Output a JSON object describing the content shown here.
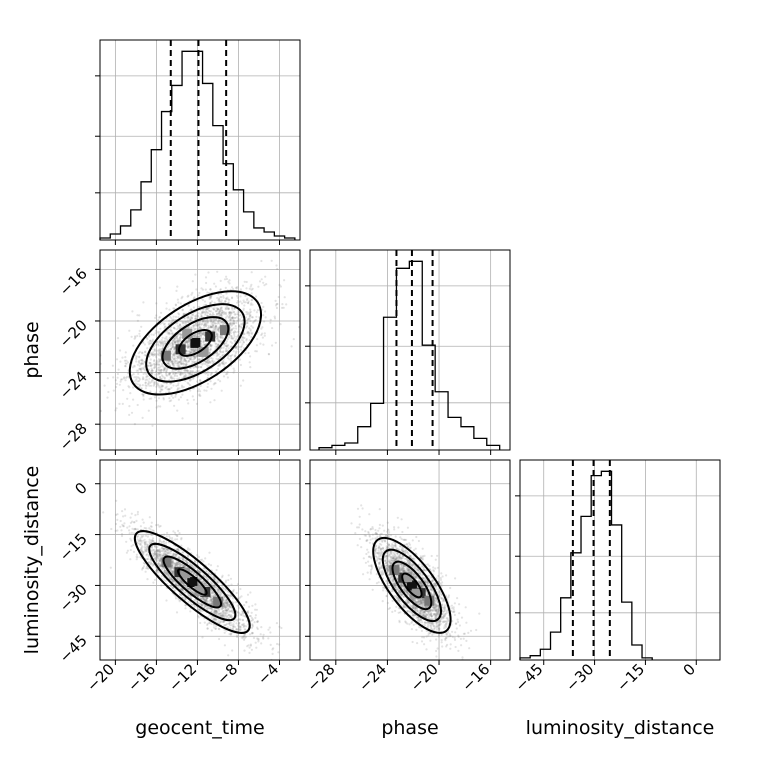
{
  "chart_data": {
    "type": "corner",
    "grid": true,
    "parameters": [
      {
        "name": "geocent_time",
        "label": "geocent_time",
        "range": [
          -21.5,
          -2.0
        ],
        "ticks": [
          -20,
          -16,
          -12,
          -8,
          -4
        ],
        "tick_labels": [
          "−20",
          "−16",
          "−12",
          "−8",
          "−4"
        ],
        "quantiles": [
          -14.6,
          -11.9,
          -9.2
        ],
        "histogram": {
          "edges": [
            -21.5,
            -20.5,
            -19.5,
            -18.5,
            -17.5,
            -16.5,
            -15.5,
            -14.5,
            -13.5,
            -12.5,
            -11.5,
            -10.5,
            -9.5,
            -8.5,
            -7.5,
            -6.5,
            -5.5,
            -4.5,
            -3.5,
            -2.5
          ],
          "counts": [
            1,
            3,
            7,
            15,
            29,
            45,
            64,
            77,
            94,
            94,
            78,
            57,
            38,
            25,
            14,
            6,
            4,
            2,
            1
          ]
        }
      },
      {
        "name": "phase",
        "label": "phase",
        "range": [
          -30.0,
          -14.5
        ],
        "ticks": [
          -28,
          -24,
          -20,
          -16
        ],
        "tick_labels": [
          "−28",
          "−24",
          "−20",
          "−16"
        ],
        "quantiles": [
          -23.3,
          -22.1,
          -20.5
        ],
        "histogram": {
          "edges": [
            -29.3,
            -28.3,
            -27.3,
            -26.3,
            -25.3,
            -24.3,
            -23.3,
            -22.3,
            -21.3,
            -20.3,
            -19.3,
            -18.3,
            -17.3,
            -16.3,
            -15.3
          ],
          "counts": [
            1,
            2,
            3,
            10,
            20,
            57,
            78,
            81,
            45,
            25,
            14,
            10,
            5,
            2
          ]
        }
      },
      {
        "name": "luminosity_distance",
        "label": "luminosity_distance",
        "range": [
          -52.0,
          7.0
        ],
        "ticks": [
          -45,
          -30,
          -15,
          0
        ],
        "tick_labels": [
          "−45",
          "−30",
          "−15",
          "0"
        ],
        "quantiles": [
          -36.4,
          -30.3,
          -25.5
        ],
        "histogram": {
          "edges": [
            -52.0,
            -49.0,
            -46.0,
            -43.0,
            -40.0,
            -37.0,
            -34.0,
            -31.0,
            -28.0,
            -25.0,
            -22.0,
            -19.0,
            -16.0,
            -13.0
          ],
          "counts": [
            1,
            2,
            5,
            13,
            29,
            50,
            67,
            86,
            88,
            63,
            27,
            7,
            1
          ]
        }
      }
    ],
    "pairs": [
      {
        "x": "geocent_time",
        "y": "phase",
        "center": [
          -12.2,
          -21.7
        ],
        "spread": [
          3.2,
          2.0
        ],
        "correlation": 0.55
      },
      {
        "x": "geocent_time",
        "y": "luminosity_distance",
        "center": [
          -12.5,
          -29.0
        ],
        "spread": [
          2.8,
          7.5
        ],
        "correlation": -0.86
      },
      {
        "x": "phase",
        "y": "luminosity_distance",
        "center": [
          -22.1,
          -30.0
        ],
        "spread": [
          1.5,
          7.0
        ],
        "correlation": -0.72
      }
    ]
  }
}
